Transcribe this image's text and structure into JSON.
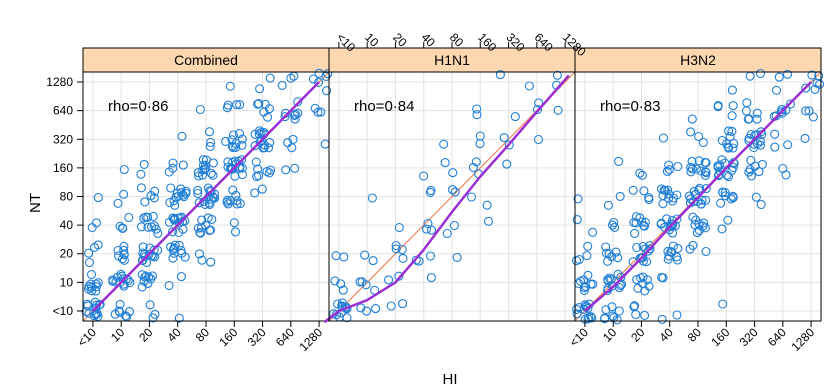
{
  "chart_data": {
    "type": "scatter",
    "xlabel": "HI",
    "ylabel": "NT",
    "x_ticks": [
      "<10",
      "10",
      "20",
      "40",
      "80",
      "160",
      "320",
      "640",
      "1280"
    ],
    "y_ticks": [
      "<10",
      "10",
      "20",
      "40",
      "80",
      "160",
      "320",
      "640",
      "1280"
    ],
    "scale": "log2",
    "grid": true,
    "colors": {
      "points": "#1f7fd6",
      "smooth": "#9b2fd4",
      "identity": "#f0845a",
      "strip": "#fcd7b0"
    },
    "panels": [
      {
        "title": "Combined",
        "annotation": "rho=0·86",
        "smooth": [
          [
            5,
            5
          ],
          [
            10,
            10
          ],
          [
            20,
            20
          ],
          [
            40,
            40
          ],
          [
            80,
            80
          ],
          [
            160,
            160
          ],
          [
            320,
            320
          ],
          [
            640,
            640
          ],
          [
            1280,
            1280
          ]
        ],
        "counts": [
          [
            14,
            7,
            3,
            1,
            0,
            0,
            0,
            0,
            0
          ],
          [
            10,
            13,
            9,
            2,
            0,
            0,
            0,
            0,
            0
          ],
          [
            4,
            8,
            14,
            10,
            3,
            0,
            0,
            0,
            0
          ],
          [
            2,
            4,
            10,
            14,
            10,
            2,
            0,
            0,
            0
          ],
          [
            1,
            2,
            5,
            13,
            16,
            9,
            2,
            0,
            0
          ],
          [
            0,
            1,
            2,
            4,
            13,
            16,
            7,
            2,
            0
          ],
          [
            0,
            0,
            0,
            1,
            3,
            10,
            14,
            3,
            1
          ],
          [
            0,
            0,
            0,
            0,
            1,
            4,
            6,
            7,
            3
          ],
          [
            0,
            0,
            0,
            0,
            0,
            1,
            2,
            3,
            6
          ]
        ]
      },
      {
        "title": "H1N1",
        "annotation": "rho=0·84",
        "smooth": [
          [
            3.5,
            3.8
          ],
          [
            5,
            5
          ],
          [
            10,
            6.5
          ],
          [
            20,
            10
          ],
          [
            40,
            22
          ],
          [
            80,
            55
          ],
          [
            160,
            130
          ],
          [
            320,
            280
          ],
          [
            640,
            620
          ],
          [
            1400,
            1500
          ]
        ],
        "counts": [
          [
            12,
            3,
            2,
            0,
            0,
            0,
            0,
            0,
            0
          ],
          [
            3,
            4,
            2,
            1,
            0,
            0,
            0,
            0,
            0
          ],
          [
            2,
            2,
            4,
            3,
            1,
            0,
            0,
            0,
            0
          ],
          [
            0,
            0,
            1,
            3,
            2,
            1,
            0,
            0,
            0
          ],
          [
            0,
            1,
            0,
            2,
            2,
            2,
            0,
            0,
            0
          ],
          [
            0,
            0,
            0,
            1,
            2,
            3,
            1,
            0,
            0
          ],
          [
            0,
            0,
            0,
            0,
            1,
            2,
            2,
            1,
            0
          ],
          [
            0,
            0,
            0,
            0,
            0,
            2,
            1,
            2,
            1
          ],
          [
            0,
            0,
            0,
            0,
            0,
            0,
            1,
            1,
            2
          ]
        ]
      },
      {
        "title": "H3N2",
        "annotation": "rho=0·83",
        "smooth": [
          [
            5,
            5
          ],
          [
            10,
            9
          ],
          [
            20,
            18
          ],
          [
            40,
            38
          ],
          [
            80,
            78
          ],
          [
            160,
            160
          ],
          [
            320,
            320
          ],
          [
            640,
            640
          ],
          [
            1280,
            1280
          ]
        ],
        "counts": [
          [
            14,
            8,
            4,
            2,
            0,
            1,
            0,
            0,
            0
          ],
          [
            9,
            12,
            8,
            2,
            0,
            0,
            0,
            0,
            0
          ],
          [
            4,
            7,
            12,
            9,
            3,
            0,
            0,
            0,
            0
          ],
          [
            2,
            3,
            9,
            13,
            9,
            2,
            0,
            0,
            0
          ],
          [
            1,
            2,
            4,
            11,
            14,
            8,
            2,
            0,
            0
          ],
          [
            0,
            1,
            2,
            4,
            12,
            14,
            7,
            2,
            0
          ],
          [
            0,
            0,
            0,
            1,
            3,
            9,
            12,
            3,
            1
          ],
          [
            0,
            0,
            0,
            0,
            1,
            4,
            6,
            7,
            3
          ],
          [
            0,
            0,
            0,
            0,
            0,
            1,
            2,
            3,
            6
          ]
        ]
      }
    ]
  }
}
